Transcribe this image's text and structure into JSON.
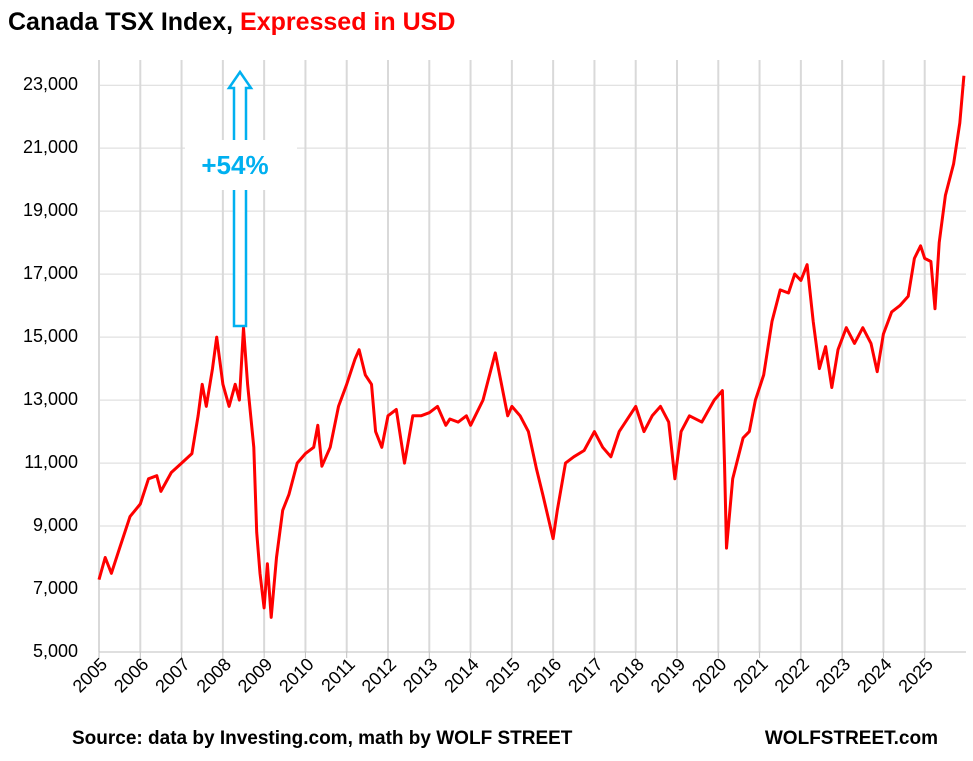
{
  "chart_data": {
    "type": "line",
    "title": "Canada TSX Index,",
    "subtitle": "Expressed in USD",
    "annotation": "+54%",
    "source": "Source: data by Investing.com, math by WOLF STREET",
    "credit": "WOLFSTREET.com",
    "xlim": [
      2005,
      2026
    ],
    "xticks": [
      2005,
      2006,
      2007,
      2008,
      2009,
      2010,
      2011,
      2012,
      2013,
      2014,
      2015,
      2016,
      2017,
      2018,
      2019,
      2020,
      2021,
      2022,
      2023,
      2024,
      2025
    ],
    "ylim": [
      5000,
      23800
    ],
    "yticks": [
      {
        "value": 5000,
        "label": "5,000"
      },
      {
        "value": 7000,
        "label": "7,000"
      },
      {
        "value": 9000,
        "label": "9,000"
      },
      {
        "value": 11000,
        "label": "11,000"
      },
      {
        "value": 13000,
        "label": "13,000"
      },
      {
        "value": 15000,
        "label": "15,000"
      },
      {
        "value": 17000,
        "label": "17,000"
      },
      {
        "value": 19000,
        "label": "19,000"
      },
      {
        "value": 21000,
        "label": "21,000"
      },
      {
        "value": 23000,
        "label": "23,000"
      }
    ],
    "grid": true,
    "x": [
      2005.0,
      2005.15,
      2005.3,
      2005.5,
      2005.75,
      2006.0,
      2006.2,
      2006.4,
      2006.5,
      2006.75,
      2007.0,
      2007.25,
      2007.4,
      2007.5,
      2007.6,
      2007.75,
      2007.85,
      2008.0,
      2008.15,
      2008.3,
      2008.4,
      2008.5,
      2008.6,
      2008.75,
      2008.82,
      2008.9,
      2009.0,
      2009.08,
      2009.17,
      2009.3,
      2009.45,
      2009.6,
      2009.8,
      2010.0,
      2010.2,
      2010.3,
      2010.4,
      2010.6,
      2010.8,
      2011.0,
      2011.2,
      2011.3,
      2011.45,
      2011.6,
      2011.7,
      2011.85,
      2012.0,
      2012.2,
      2012.4,
      2012.6,
      2012.8,
      2013.0,
      2013.2,
      2013.4,
      2013.5,
      2013.7,
      2013.9,
      2014.0,
      2014.3,
      2014.5,
      2014.6,
      2014.75,
      2014.9,
      2015.0,
      2015.2,
      2015.4,
      2015.6,
      2015.75,
      2016.0,
      2016.1,
      2016.3,
      2016.5,
      2016.75,
      2017.0,
      2017.2,
      2017.4,
      2017.6,
      2017.9,
      2018.0,
      2018.2,
      2018.4,
      2018.6,
      2018.8,
      2018.95,
      2019.1,
      2019.3,
      2019.6,
      2019.9,
      2020.1,
      2020.15,
      2020.2,
      2020.35,
      2020.6,
      2020.75,
      2020.9,
      2021.1,
      2021.3,
      2021.5,
      2021.7,
      2021.85,
      2022.0,
      2022.15,
      2022.3,
      2022.45,
      2022.6,
      2022.75,
      2022.9,
      2023.1,
      2023.3,
      2023.5,
      2023.7,
      2023.85,
      2024.0,
      2024.2,
      2024.4,
      2024.6,
      2024.75,
      2024.9,
      2025.0,
      2025.15,
      2025.25,
      2025.35,
      2025.5,
      2025.7,
      2025.85,
      2025.95
    ],
    "series": [
      {
        "name": "Canada TSX Index in USD",
        "color": "#ff0000",
        "values": [
          7300,
          8000,
          7500,
          8300,
          9300,
          9700,
          10500,
          10600,
          10100,
          10700,
          11000,
          11300,
          12500,
          13500,
          12800,
          14000,
          15000,
          13500,
          12800,
          13500,
          13000,
          15300,
          13500,
          11500,
          8800,
          7500,
          6400,
          7800,
          6100,
          8000,
          9500,
          10000,
          11000,
          11300,
          11500,
          12200,
          10900,
          11500,
          12800,
          13500,
          14300,
          14600,
          13800,
          13500,
          12000,
          11500,
          12500,
          12700,
          11000,
          12500,
          12500,
          12600,
          12800,
          12200,
          12400,
          12300,
          12500,
          12200,
          13000,
          14000,
          14500,
          13500,
          12500,
          12800,
          12500,
          12000,
          10800,
          10000,
          8600,
          9500,
          11000,
          11200,
          11400,
          12000,
          11500,
          11200,
          12000,
          12600,
          12800,
          12000,
          12500,
          12800,
          12300,
          10500,
          12000,
          12500,
          12300,
          13000,
          13300,
          11000,
          8300,
          10500,
          11800,
          12000,
          13000,
          13800,
          15500,
          16500,
          16400,
          17000,
          16800,
          17300,
          15500,
          14000,
          14700,
          13400,
          14600,
          15300,
          14800,
          15300,
          14800,
          13900,
          15100,
          15800,
          16000,
          16300,
          17500,
          17900,
          17500,
          17400,
          15900,
          18000,
          19500,
          20500,
          21800,
          23300
        ]
      }
    ]
  }
}
